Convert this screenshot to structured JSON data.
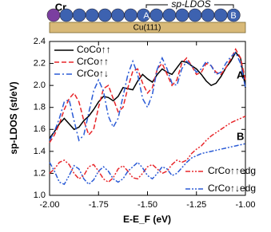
{
  "schematic": {
    "cr_label": "Cr",
    "site_a": "A",
    "site_b": "B",
    "bracket_label": "sp-LDOS",
    "substrate": "Cu(111)"
  },
  "chart_data": {
    "type": "line",
    "xlabel": "E-E_F (eV)",
    "ylabel": "sp-LDOS (st/eV)",
    "annotations": [
      "A",
      "B"
    ],
    "xlim": [
      -2.0,
      -1.0
    ],
    "xticks": [
      {
        "value": -2.0,
        "label": "-2.00"
      },
      {
        "value": -1.75,
        "label": "-1.75"
      },
      {
        "value": -1.5,
        "label": "-1.50"
      },
      {
        "value": -1.25,
        "label": "-1.25"
      },
      {
        "value": -1.0,
        "label": "-1.00"
      }
    ],
    "ylim": [
      1.0,
      2.4
    ],
    "yticks": [
      {
        "value": 1.0,
        "label": "1.0"
      },
      1.2,
      1.4,
      1.6,
      1.8,
      {
        "value": 2.0,
        "label": "2.0"
      },
      2.2,
      2.4
    ],
    "x": [
      -2.0,
      -1.975,
      -1.95,
      -1.925,
      -1.9,
      -1.875,
      -1.85,
      -1.825,
      -1.8,
      -1.775,
      -1.75,
      -1.725,
      -1.7,
      -1.675,
      -1.65,
      -1.625,
      -1.6,
      -1.575,
      -1.55,
      -1.525,
      -1.5,
      -1.475,
      -1.45,
      -1.425,
      -1.4,
      -1.375,
      -1.35,
      -1.325,
      -1.3,
      -1.275,
      -1.25,
      -1.225,
      -1.2,
      -1.175,
      -1.15,
      -1.125,
      -1.1,
      -1.075,
      -1.05,
      -1.025,
      -1.0
    ],
    "series": [
      {
        "name": "CoCo↑↑",
        "color": "#000000",
        "dash": "none",
        "legend": "upper left",
        "values": [
          1.52,
          1.58,
          1.65,
          1.7,
          1.65,
          1.6,
          1.62,
          1.68,
          1.72,
          1.78,
          1.85,
          1.9,
          1.89,
          1.86,
          1.9,
          1.98,
          1.97,
          1.96,
          2.04,
          2.1,
          2.06,
          2.03,
          2.1,
          2.15,
          2.12,
          2.1,
          2.16,
          2.22,
          2.21,
          2.18,
          2.15,
          2.1,
          2.04,
          2.0,
          2.02,
          2.08,
          2.16,
          2.22,
          2.3,
          2.25,
          1.98
        ]
      },
      {
        "name": "CrCo↑↑",
        "color": "#e8262a",
        "dash": "6,3",
        "legend": "upper left",
        "values": [
          1.48,
          1.55,
          1.65,
          1.78,
          1.88,
          1.93,
          1.85,
          1.68,
          1.55,
          1.6,
          1.8,
          1.97,
          2.0,
          1.88,
          1.76,
          1.8,
          1.98,
          2.13,
          2.15,
          2.02,
          1.93,
          1.98,
          2.15,
          2.2,
          2.1,
          2.0,
          2.05,
          2.2,
          2.25,
          2.18,
          2.1,
          2.12,
          2.2,
          2.18,
          2.12,
          2.1,
          2.16,
          2.24,
          2.33,
          2.25,
          2.05
        ]
      },
      {
        "name": "CrCo↑↓",
        "color": "#2b5bd6",
        "dash": "7,3,2,3",
        "legend": "upper left",
        "values": [
          1.5,
          1.58,
          1.7,
          1.85,
          1.87,
          1.68,
          1.5,
          1.55,
          1.75,
          1.95,
          2.05,
          1.95,
          1.72,
          1.62,
          1.7,
          1.9,
          2.1,
          2.22,
          2.1,
          1.88,
          1.8,
          1.92,
          2.15,
          2.25,
          2.15,
          2.02,
          2.0,
          2.15,
          2.22,
          2.18,
          2.12,
          2.15,
          2.22,
          2.18,
          2.1,
          2.12,
          2.2,
          2.26,
          2.3,
          2.2,
          1.98
        ]
      },
      {
        "name": "CrCo↑↑edg",
        "color": "#e8262a",
        "dash": "6,2,2,2,2,2",
        "legend": "lower right",
        "values": [
          1.2,
          1.24,
          1.3,
          1.32,
          1.28,
          1.2,
          1.15,
          1.18,
          1.26,
          1.28,
          1.22,
          1.15,
          1.12,
          1.16,
          1.24,
          1.27,
          1.22,
          1.16,
          1.15,
          1.2,
          1.26,
          1.28,
          1.24,
          1.2,
          1.22,
          1.28,
          1.32,
          1.3,
          1.32,
          1.38,
          1.42,
          1.45,
          1.5,
          1.54,
          1.57,
          1.6,
          1.63,
          1.66,
          1.68,
          1.7,
          1.72
        ]
      },
      {
        "name": "CrCo↑↓edg",
        "color": "#2b5bd6",
        "dash": "6,2,2,2,2,2",
        "legend": "lower right",
        "values": [
          1.3,
          1.22,
          1.12,
          1.1,
          1.18,
          1.27,
          1.24,
          1.15,
          1.1,
          1.14,
          1.22,
          1.26,
          1.22,
          1.15,
          1.12,
          1.15,
          1.22,
          1.26,
          1.3,
          1.25,
          1.18,
          1.15,
          1.2,
          1.26,
          1.24,
          1.18,
          1.2,
          1.25,
          1.3,
          1.34,
          1.36,
          1.38,
          1.39,
          1.4,
          1.41,
          1.42,
          1.43,
          1.44,
          1.45,
          1.46,
          1.47
        ]
      }
    ]
  }
}
